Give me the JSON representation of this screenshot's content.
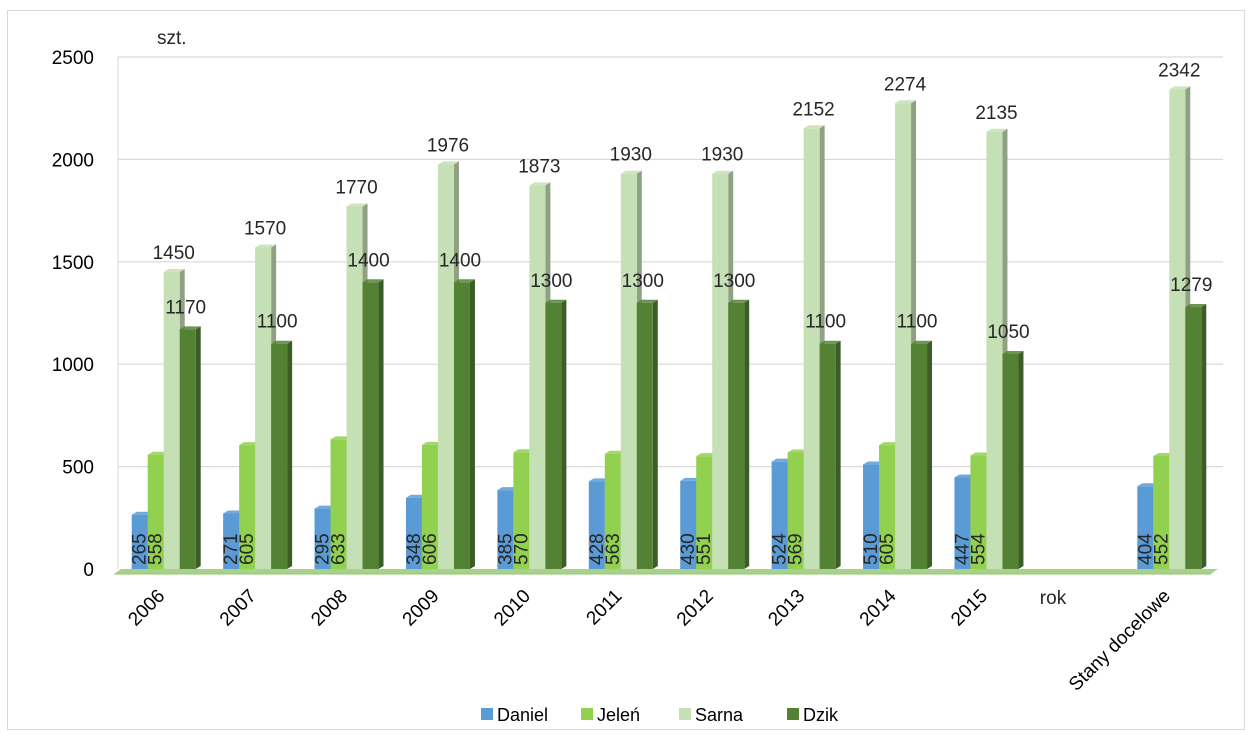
{
  "chart_data": {
    "type": "bar",
    "categories": [
      "2006",
      "2007",
      "2008",
      "2009",
      "2010",
      "2011",
      "2012",
      "2013",
      "2014",
      "2015",
      "",
      "Stany docelowe"
    ],
    "series": [
      {
        "name": "Daniel",
        "color": "#5b9bd5",
        "values": [
          265,
          271,
          295,
          348,
          385,
          428,
          430,
          524,
          510,
          447,
          null,
          404
        ]
      },
      {
        "name": "Jeleń",
        "color": "#92d050",
        "values": [
          558,
          605,
          633,
          606,
          570,
          563,
          551,
          569,
          605,
          554,
          null,
          552
        ]
      },
      {
        "name": "Sarna",
        "color": "#c5e0b4",
        "values": [
          1450,
          1570,
          1770,
          1976,
          1873,
          1930,
          1930,
          2152,
          2274,
          2135,
          null,
          2342
        ]
      },
      {
        "name": "Dzik",
        "color": "#548235",
        "values": [
          1170,
          1100,
          1400,
          1400,
          1300,
          1300,
          1300,
          1100,
          1100,
          1050,
          null,
          1279
        ]
      }
    ],
    "yticks": [
      "0",
      "500",
      "1000",
      "1500",
      "2000",
      "2500"
    ],
    "ylim": [
      0,
      2500
    ],
    "ylabel": "szt.",
    "xlabel": "rok",
    "grid": true,
    "legend": "bottom"
  }
}
